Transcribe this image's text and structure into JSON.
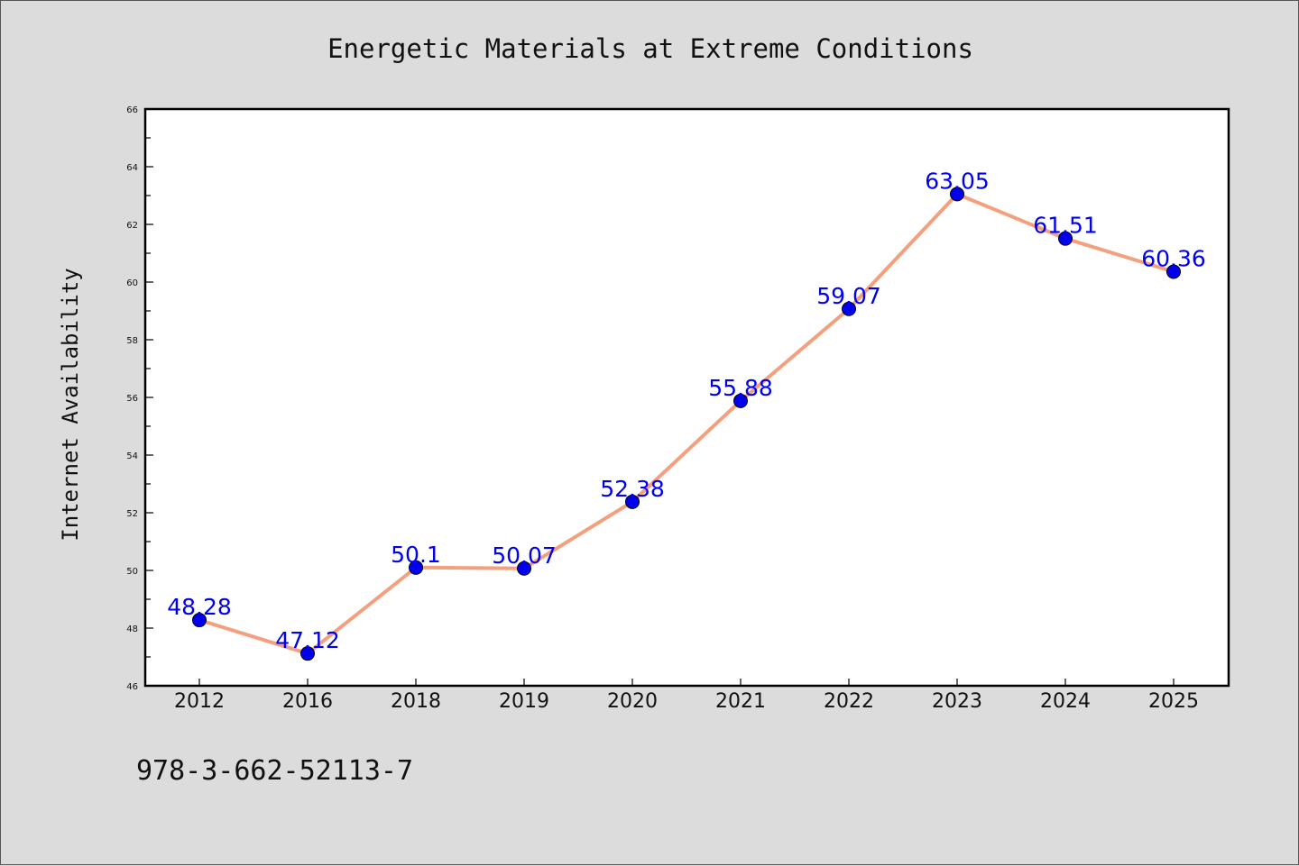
{
  "chart_data": {
    "type": "line",
    "title": "Energetic Materials at Extreme Conditions",
    "ylabel": "Internet Availability",
    "xlabel": "",
    "categories": [
      "2012",
      "2016",
      "2018",
      "2019",
      "2020",
      "2021",
      "2022",
      "2023",
      "2024",
      "2025"
    ],
    "values": [
      48.28,
      47.12,
      50.1,
      50.07,
      52.38,
      55.88,
      59.07,
      63.05,
      61.51,
      60.36
    ],
    "data_labels": [
      "48.28",
      "47.12",
      "50.1",
      "50.07",
      "52.38",
      "55.88",
      "59.07",
      "63.05",
      "61.51",
      "60.36"
    ],
    "ylim": [
      46,
      66
    ],
    "yticks": [
      "46",
      "48",
      "50",
      "52",
      "54",
      "56",
      "58",
      "60",
      "62",
      "64",
      "66"
    ],
    "grid": false,
    "legend": "none",
    "line_color": "#f4a07e",
    "marker_color": "#0000ee",
    "label_color": "#0000ee",
    "background_color": "#dcdcdc",
    "plot_background": "#ffffff"
  },
  "footer": {
    "isbn": "978-3-662-52113-7"
  }
}
